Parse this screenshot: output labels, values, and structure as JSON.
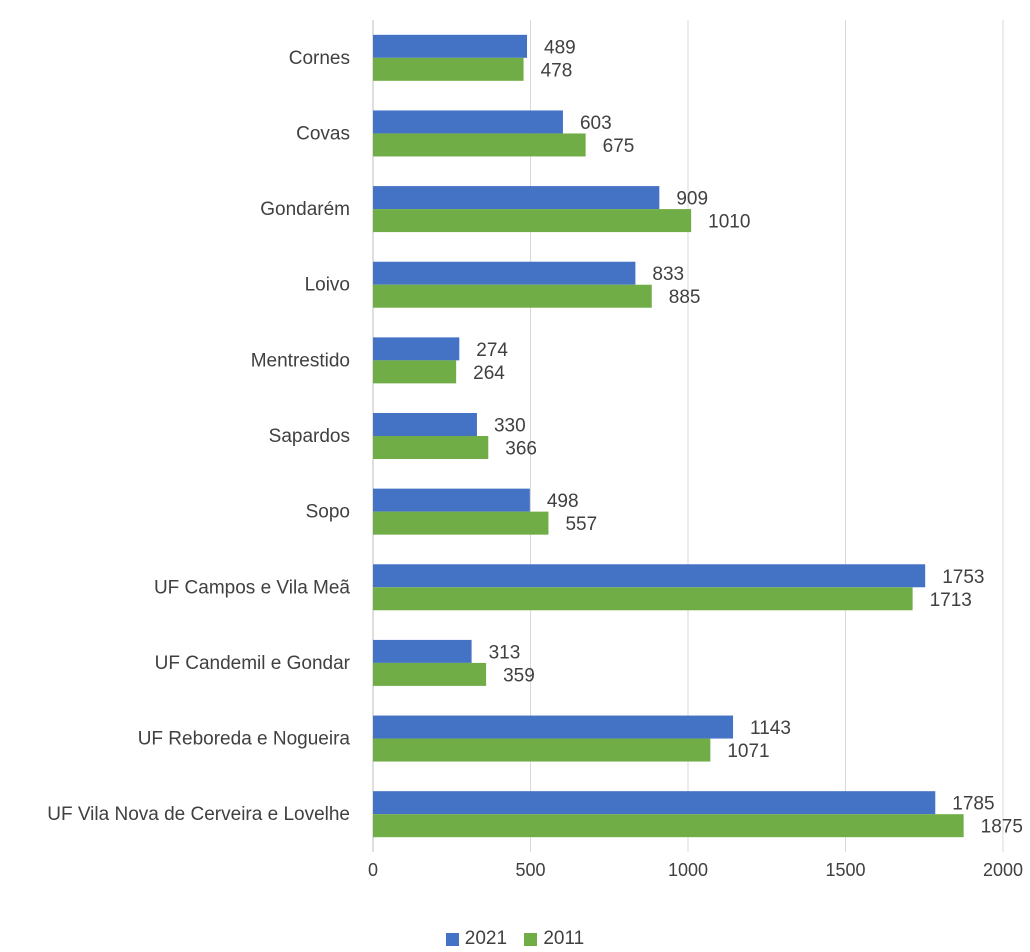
{
  "chart_data": {
    "type": "bar",
    "orientation": "horizontal",
    "categories": [
      "Cornes",
      "Covas",
      "Gondarém",
      "Loivo",
      "Mentrestido",
      "Sapardos",
      "Sopo",
      "UF Campos e Vila Meã",
      "UF Candemil e Gondar",
      "UF Reboreda e Nogueira",
      "UF Vila Nova de Cerveira e Lovelhe"
    ],
    "series": [
      {
        "name": "2021",
        "color": "#4472C4",
        "values": [
          489,
          603,
          909,
          833,
          274,
          330,
          498,
          1753,
          313,
          1143,
          1785
        ]
      },
      {
        "name": "2011",
        "color": "#70AD47",
        "values": [
          478,
          675,
          1010,
          885,
          264,
          366,
          557,
          1713,
          359,
          1071,
          1875
        ]
      }
    ],
    "title": "",
    "xlabel": "",
    "ylabel": "",
    "xlim": [
      0,
      2000
    ],
    "ticks": [
      "0",
      "500",
      "1000",
      "1500",
      "2000"
    ],
    "grid": "vertical",
    "legend_position": "bottom"
  }
}
